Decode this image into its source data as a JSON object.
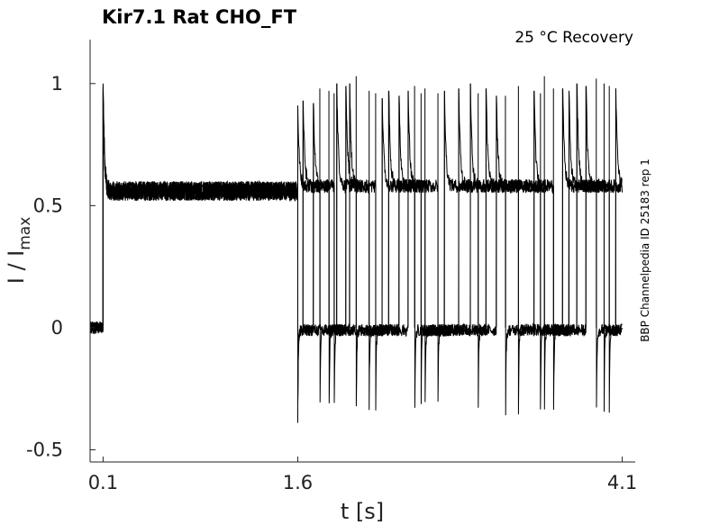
{
  "chart_data": {
    "type": "line",
    "title": "Kir7.1  Rat  CHO_FT",
    "condition": "25 °C  Recovery",
    "source_label": "BBP Channelpedia ID 25183 rep 1",
    "xlabel": "t [s]",
    "ylabel_main": "I / I",
    "ylabel_sub": "max",
    "xlim": [
      0.0,
      4.2
    ],
    "ylim": [
      -0.55,
      1.18
    ],
    "x_ticks": [
      {
        "value": 0.1,
        "label": "0.1"
      },
      {
        "value": 1.6,
        "label": "1.6"
      },
      {
        "value": 4.1,
        "label": "4.1"
      }
    ],
    "y_ticks": [
      {
        "value": 1,
        "label": "1"
      },
      {
        "value": 0.5,
        "label": "0.5"
      },
      {
        "value": 0,
        "label": "0"
      },
      {
        "value": -0.5,
        "label": "-0.5"
      }
    ],
    "protocol": {
      "baseline_level": 0.0,
      "first_step_onset": 0.1,
      "first_step_peak": 1.0,
      "first_step_steady": 0.56,
      "gap_start": 1.6,
      "gap_undershoot": -0.38,
      "recovery_steady": 0.58,
      "end_time": 4.1
    },
    "series": [
      {
        "step_onsets": [
          1.6,
          1.77,
          1.9,
          2.05,
          2.3,
          2.5,
          3.05,
          3.5,
          3.75,
          3.9,
          4.05
        ],
        "step_peaks": [
          0.91,
          0.98,
          1.0,
          1.03,
          0.97,
          0.99,
          0.98,
          1.03,
          1.0,
          1.02,
          0.98
        ]
      },
      {
        "step_onsets": [
          1.64,
          1.84,
          1.97,
          2.15,
          2.38,
          2.58,
          2.93,
          3.3,
          3.64,
          3.96
        ],
        "step_peaks": [
          0.93,
          0.97,
          0.99,
          0.97,
          0.95,
          0.98,
          1.0,
          0.99,
          0.98,
          1.0
        ]
      },
      {
        "step_onsets": [
          1.72,
          1.88,
          2.0,
          2.2,
          2.45,
          2.68,
          2.84,
          3.2,
          3.42,
          3.57,
          3.82
        ],
        "step_peaks": [
          0.92,
          0.96,
          1.0,
          0.96,
          0.97,
          0.96,
          0.98,
          0.95,
          0.97,
          0.98,
          0.99
        ]
      },
      {
        "step_onsets": [
          2.25,
          2.55,
          2.73,
          2.99,
          3.13,
          3.47,
          3.69,
          4.0
        ],
        "step_peaks": [
          0.94,
          0.96,
          0.97,
          0.96,
          0.95,
          0.96,
          0.97,
          0.99
        ]
      }
    ]
  }
}
